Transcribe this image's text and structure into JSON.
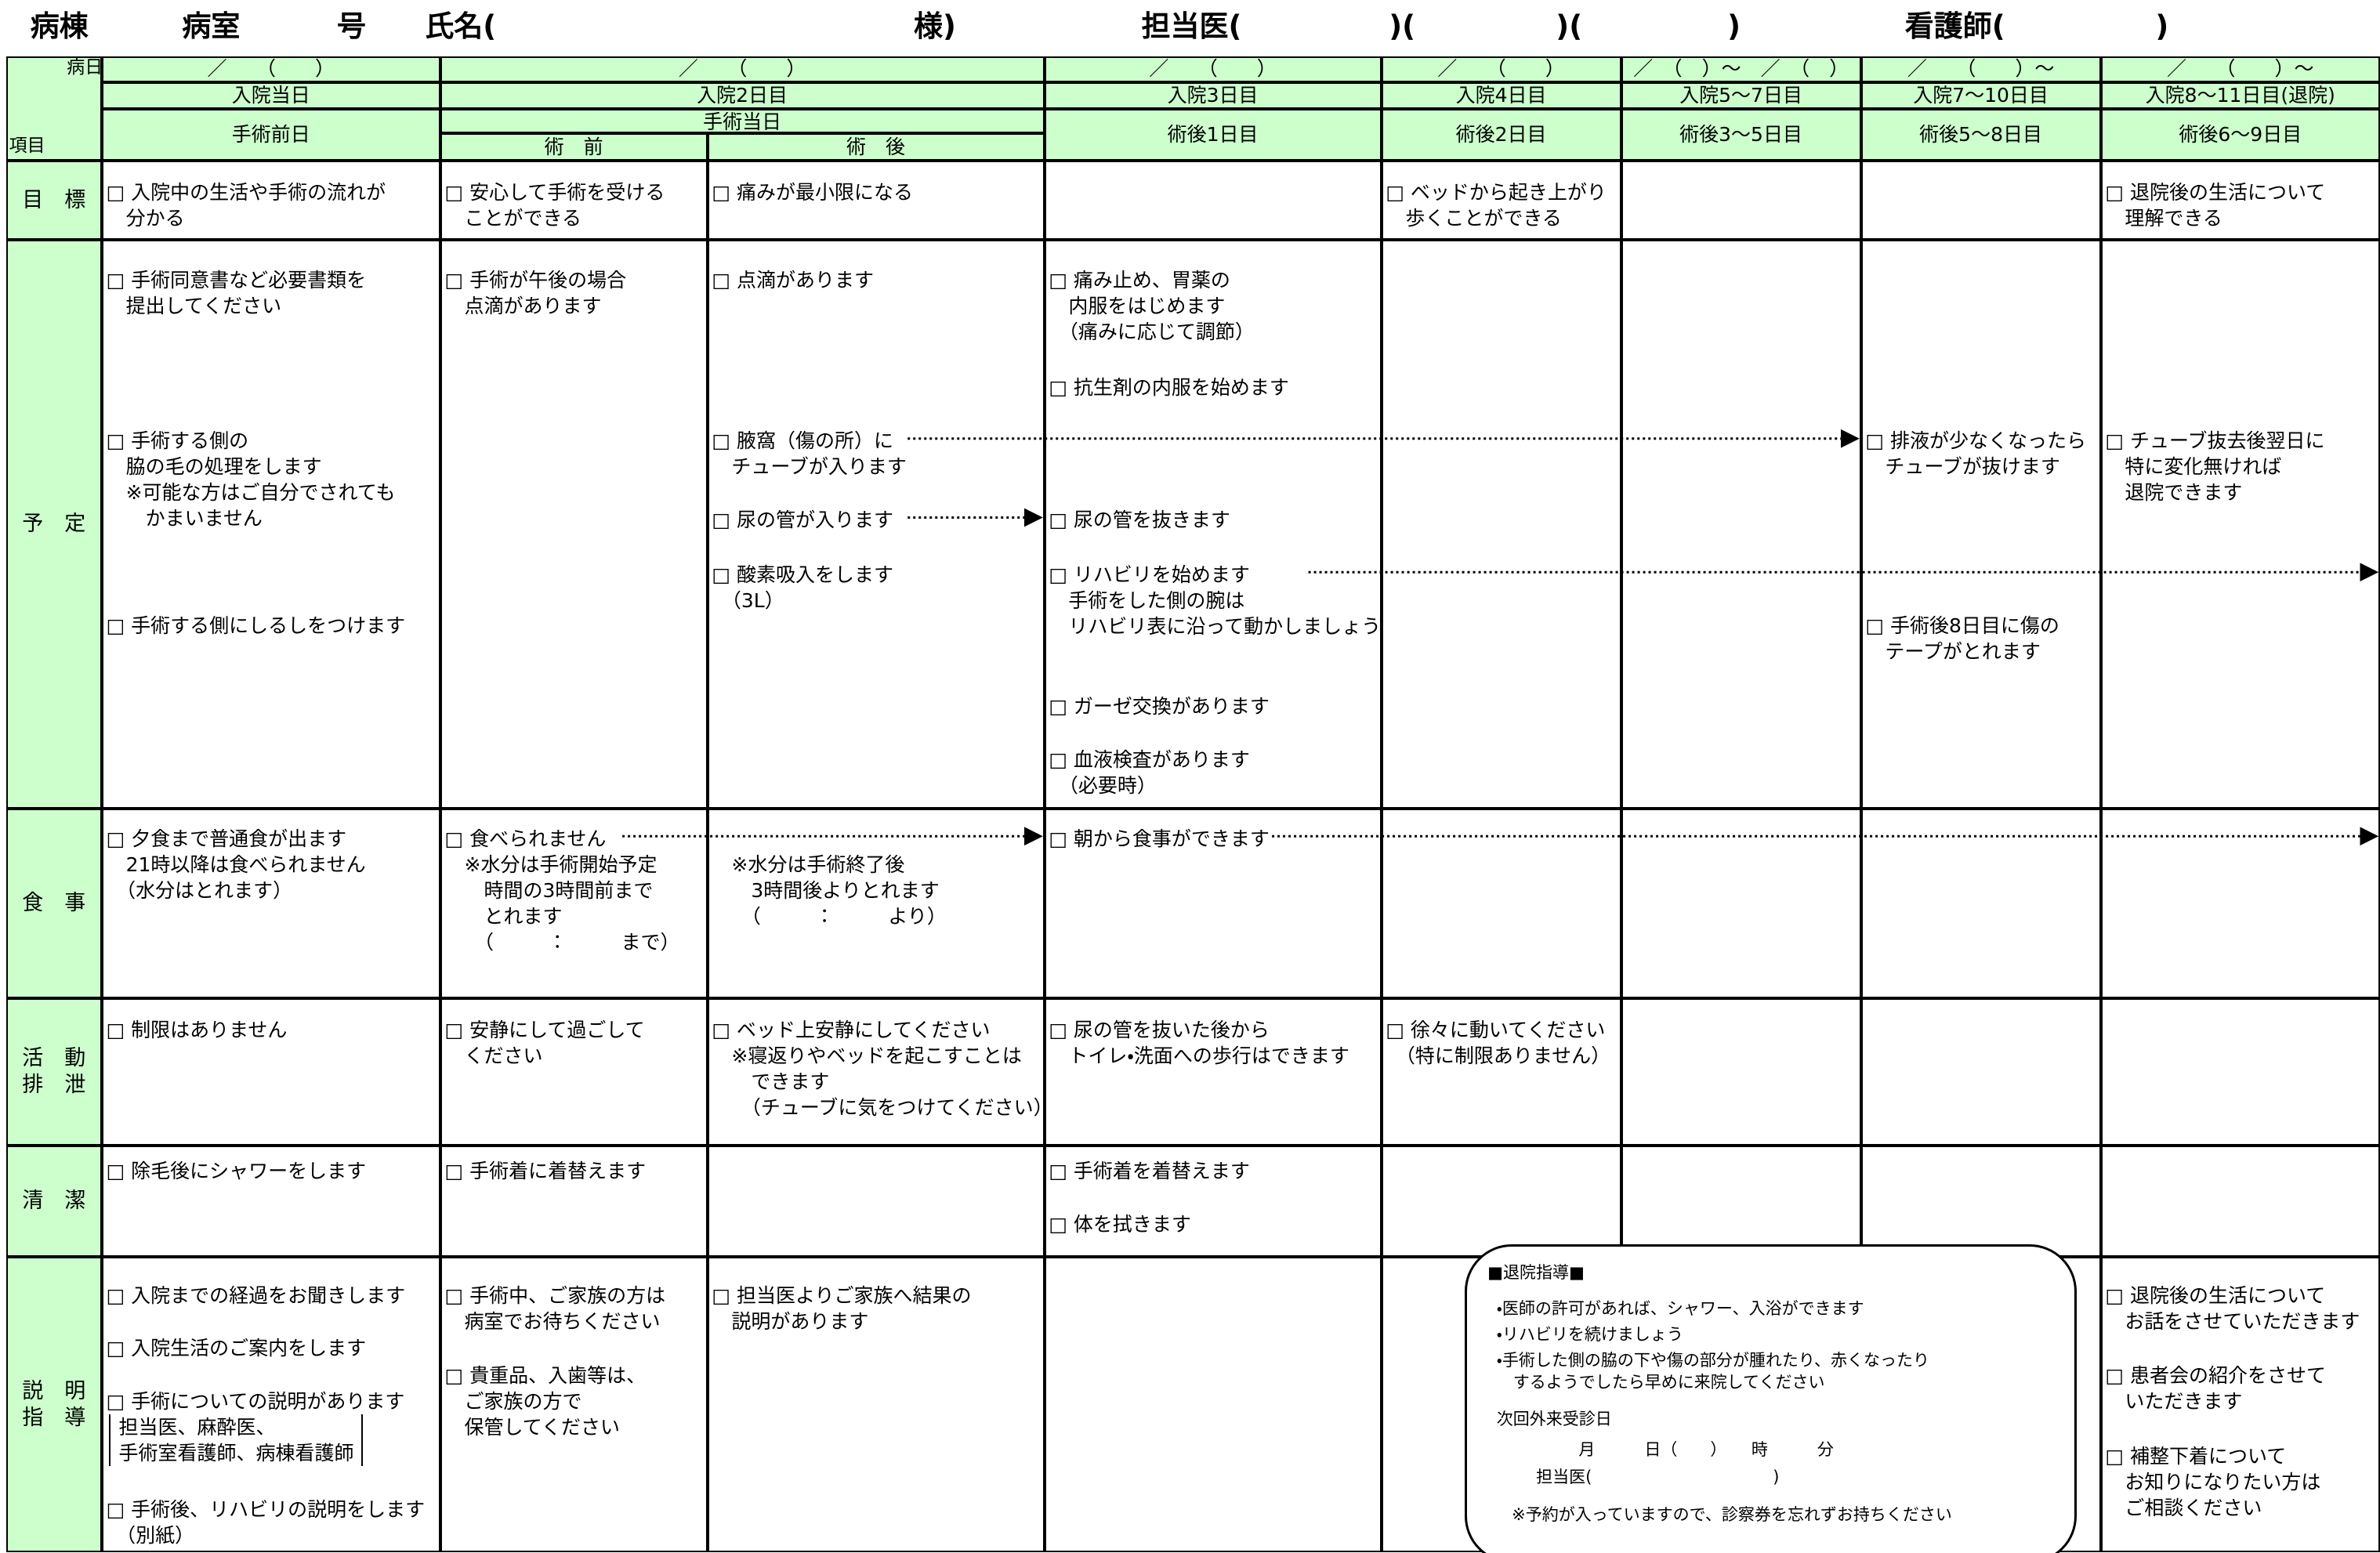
{
  "header": {
    "ward": "病棟",
    "room": "病室",
    "room_suffix": "号",
    "name": "氏名(",
    "name_suffix": "様)",
    "doctor": "担当医(",
    "doctor_2": ")(",
    "doctor_3": ")(",
    "doctor_end": ")",
    "nurse": "看護師(",
    "nurse_end": ")"
  },
  "corner": {
    "top": "病日",
    "bottom": "項目"
  },
  "columns": [
    {
      "date": "／　　（　　）",
      "day": "入院当日",
      "phase": "手術前日"
    },
    {
      "date": "／　　（　　）",
      "day": "入院2日目",
      "phase": "手術当日",
      "sub": [
        "術　前",
        "術　後"
      ]
    },
    {
      "date": "／　　（　　）",
      "day": "入院3日目",
      "phase": "術後1日目"
    },
    {
      "date": "／　　（　　）",
      "day": "入院4日目",
      "phase": "術後2日目"
    },
    {
      "date": "／　（　）～　／　（　）",
      "day": "入院5～7日目",
      "phase": "術後3～5日目"
    },
    {
      "date": "／　　（　　）～",
      "day": "入院7～10日目",
      "phase": "術後5～8日目"
    },
    {
      "date": "／　　（　　）～",
      "day": "入院8～11日目(退院)",
      "phase": "術後6～9日目"
    }
  ],
  "rows": [
    {
      "label": "目　標",
      "cells": [
        [
          "□ 入院中の生活や手術の流れが\n　分かる"
        ],
        [
          "□ 安心して手術を受ける\n　ことができる"
        ],
        [
          "□ 痛みが最小限になる"
        ],
        [],
        [
          "□ ベッドから起き上がり\n　歩くことができる"
        ],
        [],
        [],
        [
          "□ 退院後の生活について\n　理解できる"
        ]
      ]
    },
    {
      "label": "予　定",
      "cells": [
        [
          "□ 手術同意書など必要書類を\n　提出してください",
          "□ 手術する側の\n　脇の毛の処理をします\n　※可能な方はご自分でされても\n　　かまいません",
          "□ 手術する側にしるしをつけます"
        ],
        [
          "□ 手術が午後の場合\n　点滴があります"
        ],
        [
          "□ 点滴があります",
          "□ 腋窩（傷の所）に\n　チューブが入ります",
          "□ 尿の管が入ります",
          "□ 酸素吸入をします\n　（3L）"
        ],
        [
          "□ 痛み止め、胃薬の\n　内服をはじめます\n　（痛みに応じて調節）",
          "□ 抗生剤の内服を始めます",
          "□ 尿の管を抜きます",
          "□ リハビリを始めます\n　手術をした側の腕は\n　リハビリ表に沿って動かしましょう",
          "□ ガーゼ交換があります",
          "□ 血液検査があります\n　（必要時）"
        ],
        [],
        [],
        [
          "□ 排液が少なくなったら\n　チューブが抜けます",
          "□ 手術後8日目に傷の\n　テープがとれます"
        ],
        [
          "□ チューブ抜去後翌日に\n　特に変化無ければ\n　退院できます"
        ]
      ]
    },
    {
      "label": "食　事",
      "cells": [
        [
          "□ 夕食まで普通食が出ます\n　21時以降は食べられません\n　（水分はとれます）"
        ],
        [
          "□ 食べられません",
          "　※水分は手術開始予定\n　　時間の3時間前まで\n　　とれます\n　　（　　　：　　　まで）"
        ],
        [
          "　※水分は手術終了後\n　　3時間後よりとれます\n　　（　　　：　　　より）"
        ],
        [
          "□ 朝から食事ができます"
        ],
        [],
        [],
        [],
        []
      ]
    },
    {
      "label": "活　動\n排　泄",
      "cells": [
        [
          "□ 制限はありません"
        ],
        [
          "□ 安静にして過ごして\n　ください"
        ],
        [
          "□ ベッド上安静にしてください\n　※寝返りやベッドを起こすことは\n　　できます\n　　（チューブに気をつけてください）"
        ],
        [
          "□ 尿の管を抜いた後から\n　トイレ・洗面への歩行はできます"
        ],
        [
          "□ 徐々に動いてください\n　（特に制限ありません）"
        ],
        [],
        [],
        []
      ]
    },
    {
      "label": "清　潔",
      "cells": [
        [
          "□ 除毛後にシャワーをします"
        ],
        [
          "□ 手術着に着替えます"
        ],
        [],
        [
          "□ 手術着を着替えます",
          "□ 体を拭きます"
        ],
        [],
        [],
        [],
        []
      ]
    },
    {
      "label": "説　明\n指　導",
      "cells": [
        [
          "□ 入院までの経過をお聞きします",
          "□ 入院生活のご案内をします",
          "□ 手術についての説明があります",
          "担当医、麻酔医、\n手術室看護師、病棟看護師",
          "□ 手術後、リハビリの説明をします\n　（別紙）"
        ],
        [
          "□ 手術中、ご家族の方は\n　病室でお待ちください",
          "□ 貴重品、入歯等は、\n　ご家族の方で\n　保管してください"
        ],
        [
          "□ 担当医よりご家族へ結果の\n　説明があります"
        ],
        [],
        [],
        [],
        [],
        [
          "□ 退院後の生活について\n　お話をさせていただきます",
          "□ 患者会の紹介をさせて\n　いただきます",
          "□ 補整下着について\n　お知りになりたい方は\n　ご相談ください"
        ]
      ]
    }
  ],
  "discharge": {
    "title": "■退院指導■",
    "lines": [
      "・医師の許可があれば、シャワー、入浴ができます",
      "・リハビリを続けましょう",
      "・手術した側の脇の下や傷の部分が腫れたり、赤くなったり\n　するようでしたら早めに来院してください",
      "次回外来受診日",
      "月　　　日（　　）　　時　　　分",
      "担当医(　　　　　　　　　　　)",
      "※予約が入っていますので、診察券を忘れずお持ちください"
    ]
  }
}
